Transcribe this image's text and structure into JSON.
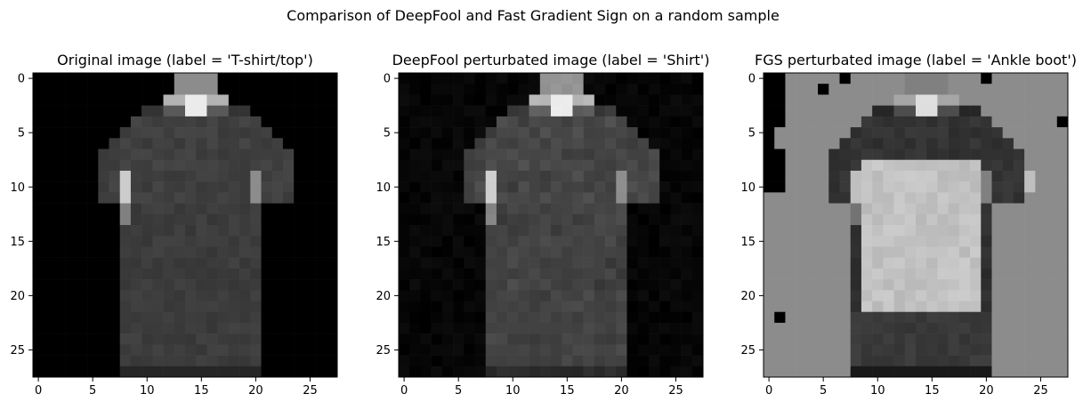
{
  "suptitle": "Comparison of DeepFool and Fast Gradient Sign on a random sample",
  "chart_data": [
    {
      "type": "heatmap",
      "title": "Original image (label = 'T-shirt/top')",
      "colormap": "gray",
      "image_size": [
        28,
        28
      ],
      "xticks": [
        0,
        5,
        10,
        15,
        20,
        25
      ],
      "yticks": [
        0,
        5,
        10,
        15,
        20,
        25
      ],
      "xlim": [
        -0.5,
        27.5
      ],
      "ylim": [
        27.5,
        -0.5
      ],
      "variant": "original"
    },
    {
      "type": "heatmap",
      "title": "DeepFool perturbated image (label = 'Shirt')",
      "colormap": "gray",
      "image_size": [
        28,
        28
      ],
      "xticks": [
        0,
        5,
        10,
        15,
        20,
        25
      ],
      "yticks": [
        0,
        5,
        10,
        15,
        20,
        25
      ],
      "xlim": [
        -0.5,
        27.5
      ],
      "ylim": [
        27.5,
        -0.5
      ],
      "variant": "deepfool"
    },
    {
      "type": "heatmap",
      "title": "FGS perturbated image (label = 'Ankle boot')",
      "colormap": "gray",
      "image_size": [
        28,
        28
      ],
      "xticks": [
        0,
        5,
        10,
        15,
        20,
        25
      ],
      "yticks": [
        0,
        5,
        10,
        15,
        20,
        25
      ],
      "xlim": [
        -0.5,
        27.5
      ],
      "ylim": [
        27.5,
        -0.5
      ],
      "variant": "fgs"
    }
  ]
}
